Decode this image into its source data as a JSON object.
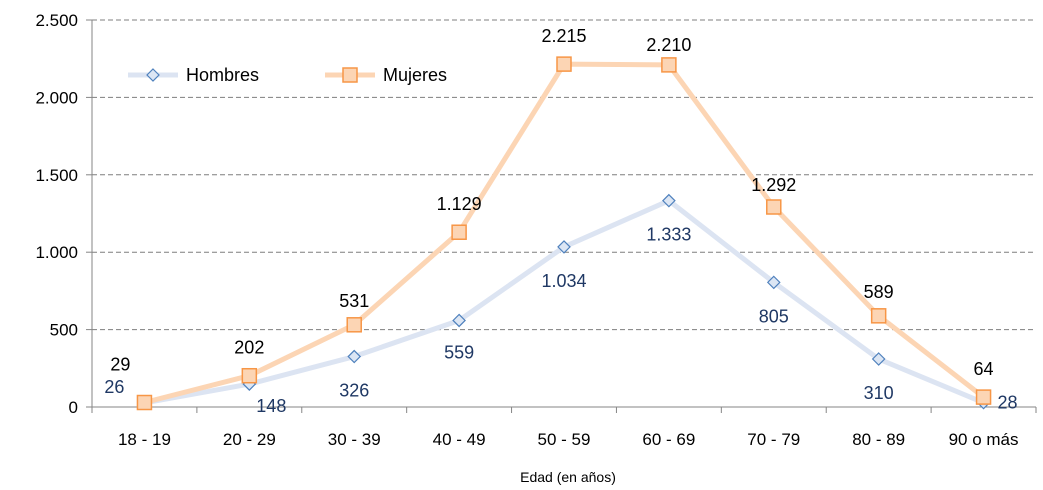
{
  "chart_data": {
    "type": "line",
    "title": "",
    "xlabel": "Edad (en años)",
    "ylabel": "",
    "categories": [
      "18 - 19",
      "20 - 29",
      "30 - 39",
      "40 - 49",
      "50 - 59",
      "60 - 69",
      "70 - 79",
      "80 - 89",
      "90 o más"
    ],
    "ylim": [
      0,
      2500
    ],
    "yticks": [
      0,
      500,
      1000,
      1500,
      2000,
      2500
    ],
    "ytick_labels": [
      "0",
      "500",
      "1.000",
      "1.500",
      "2.000",
      "2.500"
    ],
    "grid": true,
    "legend_position": "top-left",
    "series": [
      {
        "name": "Hombres",
        "values": [
          26,
          148,
          326,
          559,
          1034,
          1333,
          805,
          310,
          28
        ],
        "labels": [
          "26",
          "148",
          "326",
          "559",
          "1.034",
          "1.333",
          "805",
          "310",
          "28"
        ],
        "marker": "diamond",
        "line_color": "#dce4f2",
        "marker_fill": "#dce6f4",
        "marker_stroke": "#4f81bd",
        "label_color": "#1f3864"
      },
      {
        "name": "Mujeres",
        "values": [
          29,
          202,
          531,
          1129,
          2215,
          2210,
          1292,
          589,
          64
        ],
        "labels": [
          "29",
          "202",
          "531",
          "1.129",
          "2.215",
          "2.210",
          "1.292",
          "589",
          "64"
        ],
        "marker": "square",
        "line_color": "#fcd5b4",
        "marker_fill": "#fcd5b4",
        "marker_stroke": "#f79646",
        "label_color": "#000000"
      }
    ]
  }
}
